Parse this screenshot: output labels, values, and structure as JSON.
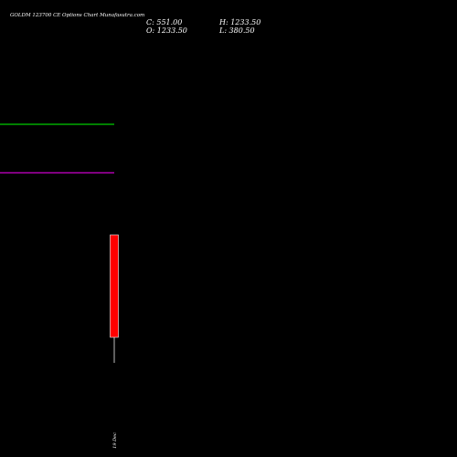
{
  "title": "GOLDM 123700 CE Options Chart Munafasutra.com",
  "ohlc": {
    "close": "C: 551.00",
    "high": "H: 1233.50",
    "open": "O: 1233.50",
    "low": "L: 380.50"
  },
  "colors": {
    "background": "#000000",
    "candle_body": "#ff0000",
    "candle_border": "#ffffff",
    "wick": "#bbbbbb",
    "green_line": "#00aa00",
    "magenta_line": "#aa00aa",
    "text": "#ffffff"
  },
  "chart_data": {
    "type": "candlestick",
    "title": "GOLDM 123700 CE Options Chart Munafasutra.com",
    "xlabel": "",
    "ylabel": "",
    "categories": [
      "19 Dec"
    ],
    "candles": [
      {
        "date": "19 Dec",
        "open": 1233.5,
        "high": 1233.5,
        "low": 380.5,
        "close": 551.0
      }
    ],
    "reference_lines": [
      {
        "color": "green",
        "value": 2650
      },
      {
        "color": "magenta",
        "value": 2180
      }
    ],
    "ylim": [
      0,
      4000
    ],
    "grid": false,
    "legend": "none"
  }
}
